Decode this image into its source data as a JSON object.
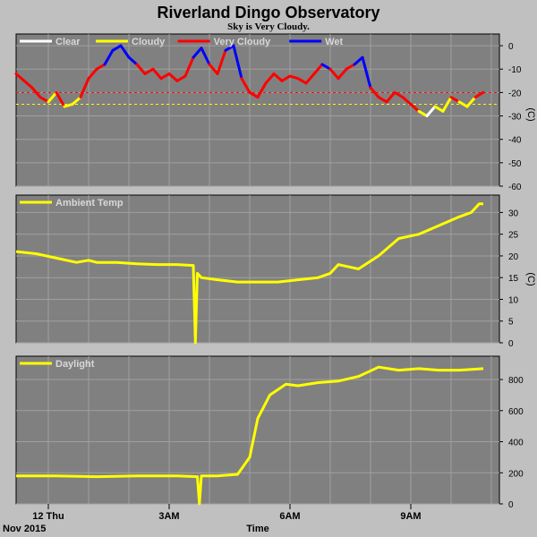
{
  "page": {
    "title": "Riverland Dingo Observatory",
    "subtitle": "Sky is Very Cloudy."
  },
  "chart_data": [
    {
      "type": "line",
      "legend_placement": "top-left",
      "legend": [
        {
          "label": "Clear",
          "color": "#ffffff"
        },
        {
          "label": "Cloudy",
          "color": "#ffff00"
        },
        {
          "label": "Very Cloudy",
          "color": "#ff0000"
        },
        {
          "label": "Wet",
          "color": "#0000ff"
        }
      ],
      "ylabel": "(C)",
      "ylim": [
        -60,
        5
      ],
      "yticks": [
        "0",
        "-10",
        "-20",
        "-30",
        "-40",
        "-50",
        "-60"
      ],
      "yticks_values": [
        0,
        -10,
        -20,
        -30,
        -40,
        -50,
        -60
      ],
      "thresholds": [
        {
          "value": -20,
          "color": "#ff0000"
        },
        {
          "value": -25,
          "color": "#ffff00"
        }
      ],
      "x_hours": [
        0.0,
        0.2,
        0.4,
        0.6,
        0.8,
        1.0,
        1.2,
        1.4,
        1.6,
        1.8,
        2.0,
        2.2,
        2.4,
        2.6,
        2.8,
        3.0,
        3.2,
        3.4,
        3.6,
        3.8,
        4.0,
        4.2,
        4.4,
        4.6,
        4.8,
        5.0,
        5.2,
        5.4,
        5.6,
        5.8,
        6.0,
        6.2,
        6.4,
        6.6,
        6.8,
        7.0,
        7.2,
        7.4,
        7.6,
        7.8,
        8.0,
        8.2,
        8.4,
        8.6,
        8.8,
        9.0,
        9.2,
        9.4,
        9.6,
        9.8,
        10.0,
        10.2,
        10.4,
        10.6,
        10.8,
        11.0,
        11.2,
        11.4,
        11.6
      ],
      "values": [
        -12,
        -15,
        -18,
        -22,
        -24,
        -20,
        -26,
        -25,
        -22,
        -14,
        -10,
        -8,
        -2,
        0,
        -5,
        -8,
        -12,
        -10,
        -14,
        -12,
        -15,
        -13,
        -5,
        -1,
        -8,
        -12,
        -2,
        0,
        -14,
        -20,
        -22,
        -16,
        -12,
        -15,
        -13,
        -14,
        -16,
        -12,
        -8,
        -10,
        -14,
        -10,
        -8,
        -5,
        -18,
        -22,
        -24,
        -20,
        -22,
        -25,
        -28,
        -30,
        -26,
        -28,
        -22,
        -24,
        -26,
        -22,
        -20
      ],
      "conditions": [
        "Very Cloudy",
        "Very Cloudy",
        "Very Cloudy",
        "Very Cloudy",
        "Cloudy",
        "Very Cloudy",
        "Cloudy",
        "Cloudy",
        "Very Cloudy",
        "Very Cloudy",
        "Very Cloudy",
        "Wet",
        "Wet",
        "Wet",
        "Wet",
        "Very Cloudy",
        "Very Cloudy",
        "Very Cloudy",
        "Very Cloudy",
        "Very Cloudy",
        "Very Cloudy",
        "Very Cloudy",
        "Wet",
        "Wet",
        "Very Cloudy",
        "Very Cloudy",
        "Wet",
        "Wet",
        "Very Cloudy",
        "Very Cloudy",
        "Very Cloudy",
        "Very Cloudy",
        "Very Cloudy",
        "Very Cloudy",
        "Very Cloudy",
        "Very Cloudy",
        "Very Cloudy",
        "Very Cloudy",
        "Wet",
        "Very Cloudy",
        "Very Cloudy",
        "Very Cloudy",
        "Wet",
        "Wet",
        "Very Cloudy",
        "Very Cloudy",
        "Very Cloudy",
        "Very Cloudy",
        "Very Cloudy",
        "Very Cloudy",
        "Cloudy",
        "Clear",
        "Cloudy",
        "Cloudy",
        "Very Cloudy",
        "Cloudy",
        "Cloudy",
        "Very Cloudy",
        "Very Cloudy"
      ]
    },
    {
      "type": "line",
      "legend_placement": "top-left",
      "series": [
        {
          "name": "Ambient Temp",
          "color": "#ffff00",
          "x_hours": [
            0.0,
            0.5,
            1.0,
            1.5,
            1.8,
            2.0,
            2.5,
            3.0,
            3.5,
            4.0,
            4.4,
            4.45,
            4.5,
            4.6,
            5.0,
            5.5,
            6.0,
            6.5,
            7.0,
            7.5,
            7.8,
            8.0,
            8.5,
            9.0,
            9.5,
            10.0,
            10.5,
            11.0,
            11.3,
            11.5,
            11.6
          ],
          "values": [
            21,
            20.5,
            19.5,
            18.5,
            19,
            18.5,
            18.5,
            18.2,
            18,
            18,
            17.8,
            0,
            16,
            15,
            14.5,
            14,
            14,
            14,
            14.5,
            15,
            16,
            18,
            17,
            20,
            24,
            25,
            27,
            29,
            30,
            32,
            32
          ]
        }
      ],
      "ylabel": "(C)",
      "ylim": [
        0,
        34
      ],
      "yticks": [
        "30",
        "25",
        "20",
        "15",
        "10",
        "5",
        "0"
      ],
      "yticks_values": [
        30,
        25,
        20,
        15,
        10,
        5,
        0
      ]
    },
    {
      "type": "line",
      "legend_placement": "top-left",
      "series": [
        {
          "name": "Daylight",
          "color": "#ffff00",
          "x_hours": [
            0.0,
            1.0,
            2.0,
            3.0,
            4.0,
            4.5,
            4.55,
            4.6,
            4.7,
            5.0,
            5.5,
            5.8,
            6.0,
            6.3,
            6.7,
            7.0,
            7.5,
            8.0,
            8.5,
            9.0,
            9.5,
            10.0,
            10.5,
            11.0,
            11.6
          ],
          "values": [
            180,
            180,
            175,
            180,
            180,
            175,
            0,
            180,
            180,
            180,
            190,
            300,
            550,
            700,
            770,
            760,
            780,
            790,
            820,
            880,
            860,
            870,
            860,
            860,
            870
          ]
        }
      ],
      "yticks": [
        "800",
        "600",
        "400",
        "200",
        "0"
      ],
      "yticks_values": [
        800,
        600,
        400,
        200,
        0
      ],
      "ylim": [
        0,
        950
      ]
    }
  ],
  "xaxis": {
    "label": "Time",
    "date_label": "Nov 2015",
    "ticks": [
      {
        "label": "12 Thu",
        "hour": 0.8
      },
      {
        "label": "3AM",
        "hour": 3.8
      },
      {
        "label": "6AM",
        "hour": 6.8
      },
      {
        "label": "9AM",
        "hour": 9.8
      }
    ],
    "xlim": [
      0,
      12
    ]
  }
}
